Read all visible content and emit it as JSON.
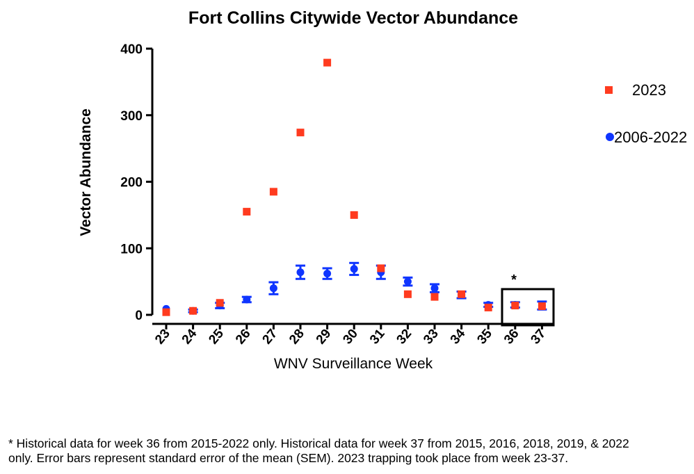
{
  "chart_data": {
    "type": "scatter",
    "title": "Fort Collins Citywide Vector Abundance",
    "xlabel": "WNV Surveillance Week",
    "ylabel": "Vector Abundance",
    "x": [
      23,
      24,
      25,
      26,
      27,
      28,
      29,
      30,
      31,
      32,
      33,
      34,
      35,
      36,
      37
    ],
    "ylim": [
      0,
      400
    ],
    "yticks": [
      0,
      100,
      200,
      300,
      400
    ],
    "grid": false,
    "legend_position": "right",
    "series": [
      {
        "name": "2023",
        "marker": "square",
        "color": "#ff3b1f",
        "values": [
          4,
          6,
          18,
          155,
          185,
          274,
          379,
          150,
          70,
          31,
          27,
          31,
          11,
          14,
          13
        ]
      },
      {
        "name": "2006-2022",
        "marker": "circle",
        "color": "#0f35ff",
        "values": [
          9,
          6,
          14,
          23,
          40,
          64,
          62,
          69,
          64,
          50,
          40,
          30,
          15,
          15,
          14
        ],
        "error": [
          0,
          2,
          4,
          4,
          9,
          10,
          8,
          9,
          10,
          6,
          6,
          5,
          3,
          4,
          6
        ]
      }
    ],
    "annotations": [
      {
        "text": "*",
        "x": 36,
        "note": "boxed region covering weeks 36-37"
      }
    ]
  },
  "footnote": {
    "line1": "* Historical data for week 36 from 2015-2022 only. Historical data for week 37 from 2015, 2016, 2018, 2019, & 2022",
    "line2": "only. Error bars represent standard error of the mean (SEM). 2023 trapping took place from week 23-37."
  }
}
